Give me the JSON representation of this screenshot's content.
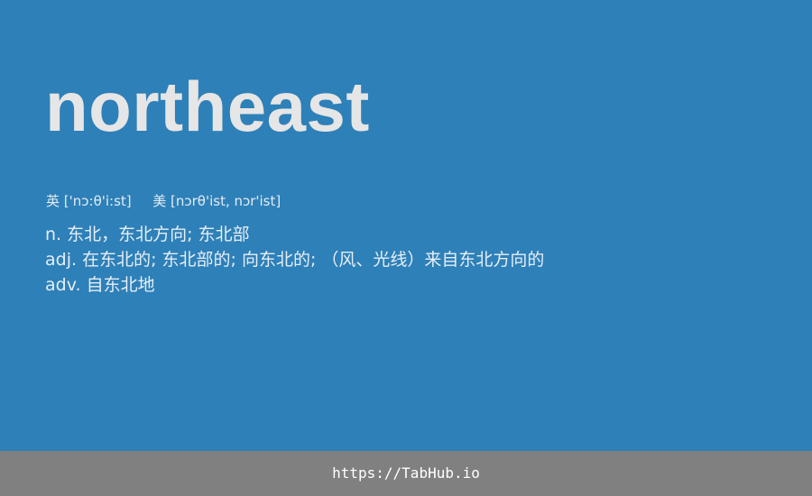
{
  "entry": {
    "word": "northeast",
    "phonetics": {
      "uk_label": "英",
      "uk": "['nɔ:θ'i:st]",
      "us_label": "美",
      "us": "[nɔrθ'ist, nɔr'ist]"
    },
    "definitions": [
      {
        "pos": "n.",
        "text": "东北，东北方向; 东北部"
      },
      {
        "pos": "adj.",
        "text": "在东北的; 东北部的; 向东北的; （风、光线）来自东北方向的"
      },
      {
        "pos": "adv.",
        "text": "自东北地"
      }
    ]
  },
  "footer": {
    "link": "https://TabHub.io"
  },
  "colors": {
    "card_background": "#2e80b8",
    "footer_background": "#808080",
    "word_text": "#e6e6e6"
  }
}
